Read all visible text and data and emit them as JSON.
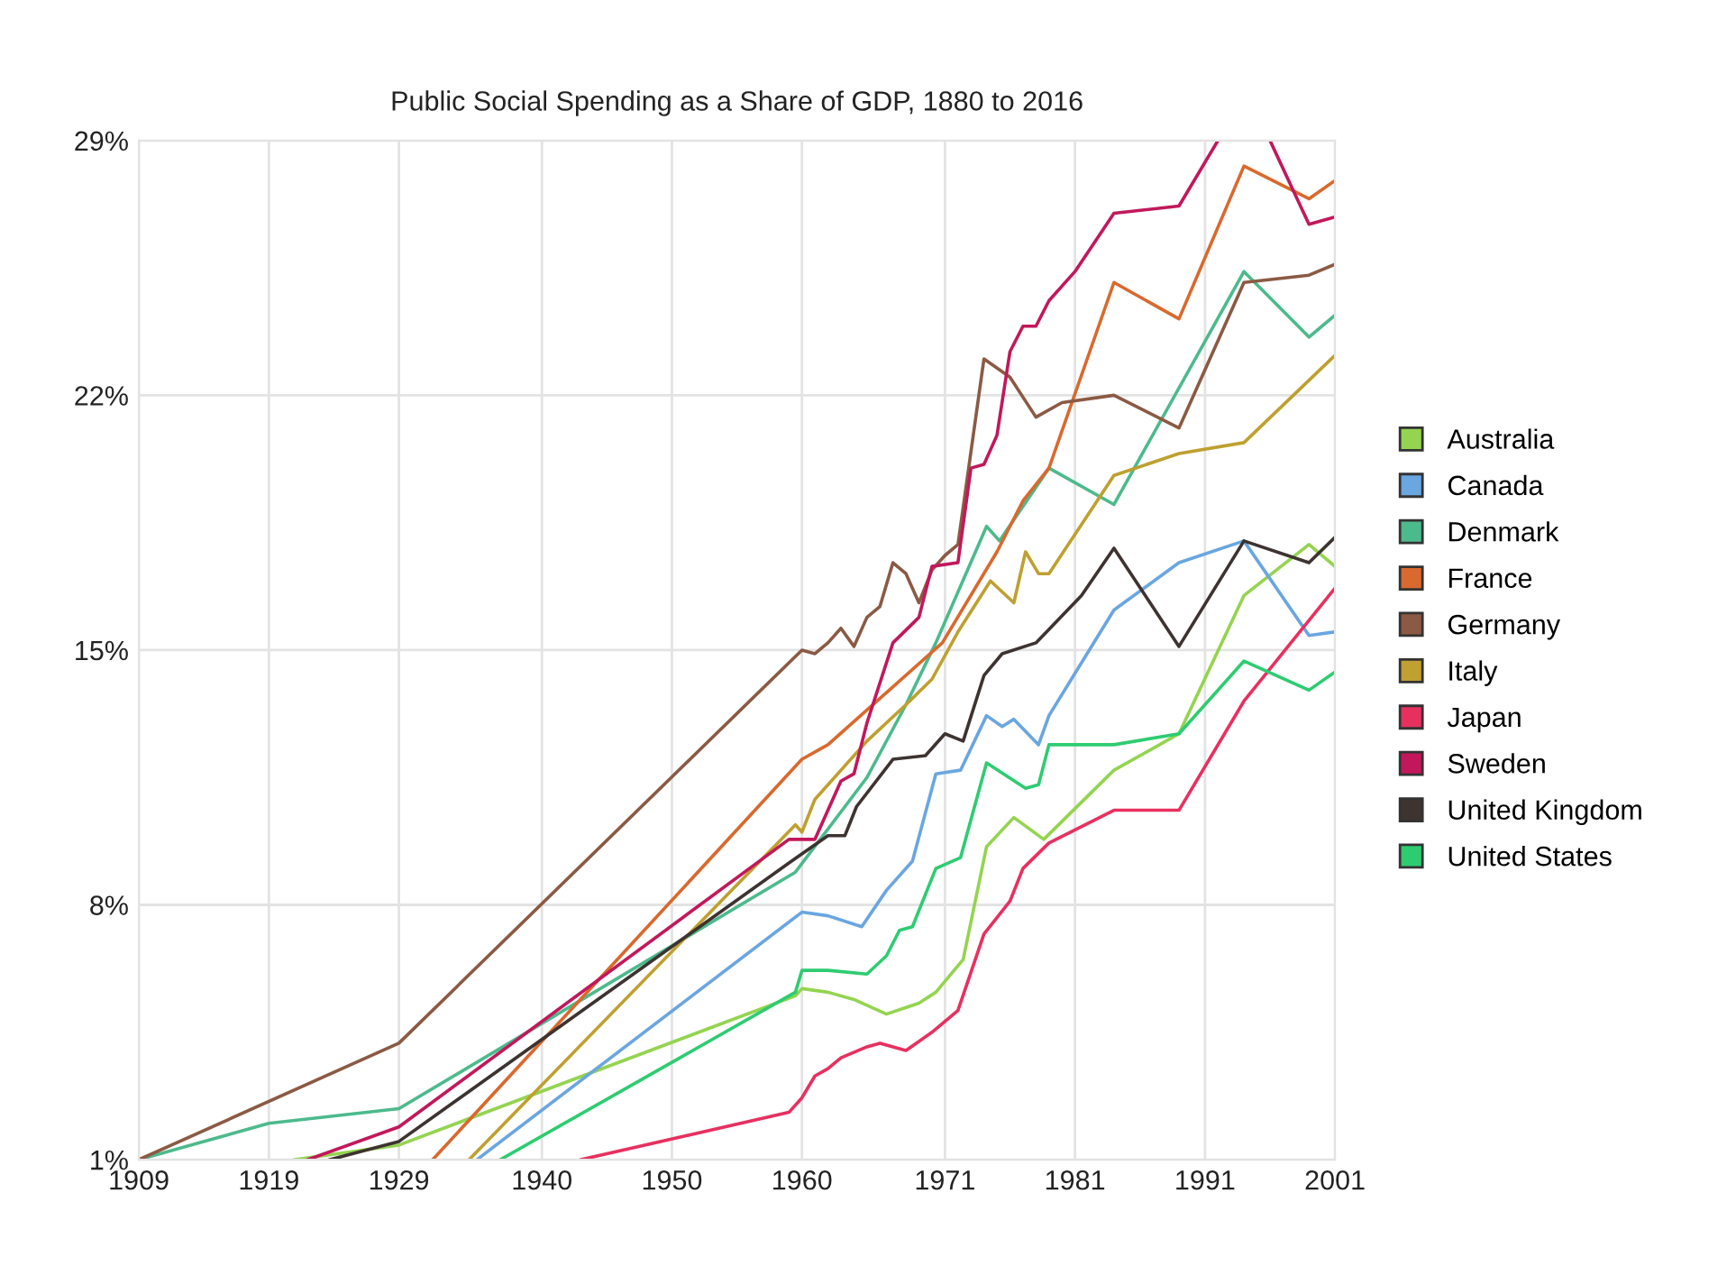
{
  "chart_data": {
    "type": "line",
    "title": "Public Social Spending as a Share of GDP, 1880 to 2016",
    "xlim": [
      1909,
      2001
    ],
    "xticks": [
      1909,
      1919,
      1929,
      1940,
      1950,
      1960,
      1971,
      1981,
      1991,
      2001
    ],
    "ylim": [
      1,
      29
    ],
    "yticks": [
      {
        "value": 1,
        "label": "1%"
      },
      {
        "value": 8,
        "label": "8%"
      },
      {
        "value": 15,
        "label": "15%"
      },
      {
        "value": 22,
        "label": "22%"
      },
      {
        "value": 29,
        "label": "29%"
      }
    ],
    "grid": true,
    "legend": "right",
    "marker": "none",
    "line_style": "solid",
    "series": [
      {
        "name": "Australia",
        "color": "#94d450",
        "x": [
          1921,
          1929,
          1959.5,
          1960,
          1962,
          1964,
          1966.5,
          1969,
          1970.3,
          1972.4,
          1974.2,
          1976.3,
          1978.6,
          1984,
          1989,
          1994,
          1999,
          2001
        ],
        "values": [
          1.0,
          1.4,
          5.5,
          5.7,
          5.6,
          5.4,
          5.0,
          5.3,
          5.6,
          6.5,
          9.6,
          10.4,
          9.8,
          11.7,
          12.7,
          16.5,
          17.9,
          17.3
        ]
      },
      {
        "name": "Canada",
        "color": "#6aa6e0",
        "x": [
          1935,
          1960,
          1962,
          1964.6,
          1966.5,
          1968.5,
          1970.3,
          1972.2,
          1974.2,
          1975.4,
          1976.3,
          1978.2,
          1979,
          1984,
          1989,
          1994,
          1999,
          2001
        ],
        "values": [
          1.0,
          7.8,
          7.7,
          7.4,
          8.4,
          9.2,
          11.6,
          11.7,
          13.2,
          12.9,
          13.1,
          12.4,
          13.2,
          16.1,
          17.4,
          18.0,
          15.4,
          15.5
        ]
      },
      {
        "name": "Denmark",
        "color": "#4cba8c",
        "x": [
          1909,
          1919,
          1929,
          1959.5,
          1965,
          1968,
          1970.3,
          1974.2,
          1975.2,
          1979,
          1984,
          1994,
          1999,
          2001
        ],
        "values": [
          1.0,
          2.0,
          2.4,
          8.9,
          11.5,
          13.5,
          15.2,
          18.4,
          18.0,
          20.0,
          19.0,
          25.4,
          23.6,
          24.2
        ]
      },
      {
        "name": "France",
        "color": "#d9692e",
        "x": [
          1931.6,
          1960,
          1962,
          1970.8,
          1975,
          1977,
          1979,
          1984,
          1989,
          1994,
          1999,
          2001
        ],
        "values": [
          1.0,
          12.0,
          12.4,
          15.2,
          17.7,
          19.1,
          20.0,
          25.1,
          24.1,
          28.3,
          27.4,
          27.9
        ]
      },
      {
        "name": "Germany",
        "color": "#8b5a44",
        "x": [
          1909,
          1929,
          1960,
          1961,
          1962,
          1963,
          1964,
          1965,
          1966,
          1967,
          1968,
          1969,
          1970,
          1971,
          1972,
          1974,
          1976,
          1978,
          1980,
          1984,
          1989,
          1994,
          1999,
          2001
        ],
        "values": [
          1.0,
          4.2,
          15.0,
          14.9,
          15.2,
          15.6,
          15.1,
          15.9,
          16.2,
          17.4,
          17.1,
          16.3,
          17.2,
          17.6,
          17.9,
          23.0,
          22.5,
          21.4,
          21.8,
          22.0,
          21.1,
          25.1,
          25.3,
          25.6
        ]
      },
      {
        "name": "Italy",
        "color": "#bfa030",
        "x": [
          1934.4,
          1959.5,
          1960,
          1961,
          1965,
          1968,
          1970,
          1972,
          1974.5,
          1976.3,
          1977.2,
          1978.2,
          1979,
          1984,
          1989,
          1994,
          2001
        ],
        "values": [
          1.0,
          10.2,
          10.0,
          10.9,
          12.5,
          13.5,
          14.2,
          15.5,
          16.9,
          16.3,
          17.7,
          17.1,
          17.1,
          19.8,
          20.4,
          20.7,
          23.1
        ]
      },
      {
        "name": "Japan",
        "color": "#e8305f",
        "x": [
          1943,
          1959,
          1960,
          1961,
          1962,
          1963,
          1965,
          1966,
          1968,
          1970,
          1972,
          1974,
          1976,
          1977,
          1979,
          1984,
          1989,
          1994,
          2001
        ],
        "values": [
          1.0,
          2.3,
          2.7,
          3.3,
          3.5,
          3.8,
          4.1,
          4.2,
          4.0,
          4.5,
          5.1,
          7.2,
          8.1,
          9.0,
          9.7,
          10.6,
          10.6,
          13.6,
          16.7
        ]
      },
      {
        "name": "Sweden",
        "color": "#c2185b",
        "x": [
          1922,
          1929,
          1959,
          1961,
          1963,
          1964,
          1965,
          1967,
          1969,
          1970,
          1972,
          1973,
          1974,
          1975,
          1976,
          1977,
          1978,
          1979,
          1981,
          1984,
          1989,
          1992,
          1994,
          1996,
          1999,
          2001
        ],
        "values": [
          1.0,
          1.9,
          9.8,
          9.8,
          11.4,
          11.6,
          13.0,
          15.2,
          15.9,
          17.3,
          17.4,
          20.0,
          20.1,
          20.9,
          23.2,
          23.9,
          23.9,
          24.6,
          25.4,
          27.0,
          27.2,
          29,
          null,
          29,
          26.7,
          26.9
        ]
      },
      {
        "name": "United Kingdom",
        "color": "#3d3330",
        "x": [
          1923.7,
          1929,
          1959.2,
          1962,
          1963.3,
          1964.2,
          1967,
          1969.5,
          1971,
          1972.4,
          1974,
          1975.4,
          1978,
          1981.5,
          1984,
          1989,
          1994,
          1999,
          2001
        ],
        "values": [
          1.0,
          1.5,
          9.2,
          9.9,
          9.9,
          10.7,
          12.0,
          12.1,
          12.7,
          12.5,
          14.3,
          14.9,
          15.2,
          16.5,
          17.8,
          15.1,
          18.0,
          17.4,
          18.1
        ]
      },
      {
        "name": "United States",
        "color": "#2ecc71",
        "x": [
          1936.8,
          1959.5,
          1960,
          1962,
          1965,
          1966.5,
          1967.5,
          1968.5,
          1970.3,
          1972.2,
          1974.2,
          1977.2,
          1978.2,
          1979,
          1984,
          1989,
          1994,
          1999,
          2001
        ],
        "values": [
          1.0,
          5.6,
          6.2,
          6.2,
          6.1,
          6.6,
          7.3,
          7.4,
          9.0,
          9.3,
          11.9,
          11.2,
          11.3,
          12.4,
          12.4,
          12.7,
          14.7,
          13.9,
          14.4
        ]
      }
    ]
  }
}
